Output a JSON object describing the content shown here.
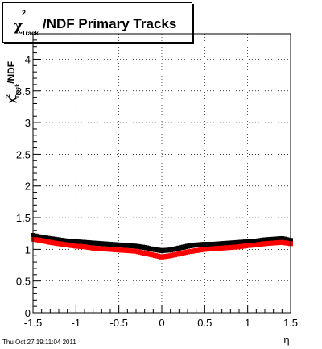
{
  "title": {
    "chi_symbol": "χ",
    "superscript": "2",
    "subscript": "Track",
    "main": "/NDF  Primary Tracks"
  },
  "footer": {
    "date_stamp": "Thu Oct 27 19:11:04 2011"
  },
  "chart_data": {
    "type": "scatter",
    "title": "χ²Track/NDF  Primary Tracks",
    "xlabel": "η",
    "ylabel": "χ²Track/NDF",
    "xlim": [
      -1.5,
      1.5
    ],
    "ylim": [
      0,
      4.4
    ],
    "grid": true,
    "x_ticks": [
      -1.5,
      -1,
      -0.5,
      0,
      0.5,
      1,
      1.5
    ],
    "x_tick_labels": [
      "-1.5",
      "-1",
      "-0.5",
      "0",
      "0.5",
      "1",
      "1.5"
    ],
    "y_ticks": [
      0,
      0.5,
      1,
      1.5,
      2,
      2.5,
      3,
      3.5,
      4
    ],
    "y_tick_labels": [
      "0",
      "0.5",
      "1",
      "1.5",
      "2",
      "2.5",
      "3",
      "3.5",
      "4"
    ],
    "series": [
      {
        "color": "#000000",
        "x": [
          -1.5,
          -1.4,
          -1.3,
          -1.2,
          -1.1,
          -1.0,
          -0.9,
          -0.8,
          -0.7,
          -0.6,
          -0.5,
          -0.4,
          -0.3,
          -0.2,
          -0.1,
          0.0,
          0.1,
          0.2,
          0.3,
          0.4,
          0.5,
          0.6,
          0.7,
          0.8,
          0.9,
          1.0,
          1.1,
          1.2,
          1.3,
          1.4,
          1.5
        ],
        "y": [
          1.22,
          1.19,
          1.17,
          1.15,
          1.13,
          1.12,
          1.11,
          1.1,
          1.09,
          1.08,
          1.07,
          1.06,
          1.05,
          1.03,
          1.0,
          0.98,
          0.99,
          1.02,
          1.05,
          1.07,
          1.08,
          1.08,
          1.09,
          1.1,
          1.11,
          1.12,
          1.13,
          1.15,
          1.16,
          1.17,
          1.14
        ]
      },
      {
        "color": "#ff0000",
        "x": [
          -1.5,
          -1.4,
          -1.3,
          -1.2,
          -1.1,
          -1.0,
          -0.9,
          -0.8,
          -0.7,
          -0.6,
          -0.5,
          -0.4,
          -0.3,
          -0.2,
          -0.1,
          0.0,
          0.1,
          0.2,
          0.3,
          0.4,
          0.5,
          0.6,
          0.7,
          0.8,
          0.9,
          1.0,
          1.1,
          1.2,
          1.3,
          1.4,
          1.5
        ],
        "y": [
          1.16,
          1.14,
          1.11,
          1.09,
          1.07,
          1.05,
          1.04,
          1.02,
          1.01,
          1.0,
          0.99,
          0.98,
          0.97,
          0.94,
          0.91,
          0.88,
          0.9,
          0.93,
          0.96,
          0.98,
          1.0,
          1.01,
          1.02,
          1.03,
          1.04,
          1.06,
          1.07,
          1.09,
          1.1,
          1.11,
          1.09
        ]
      }
    ]
  }
}
